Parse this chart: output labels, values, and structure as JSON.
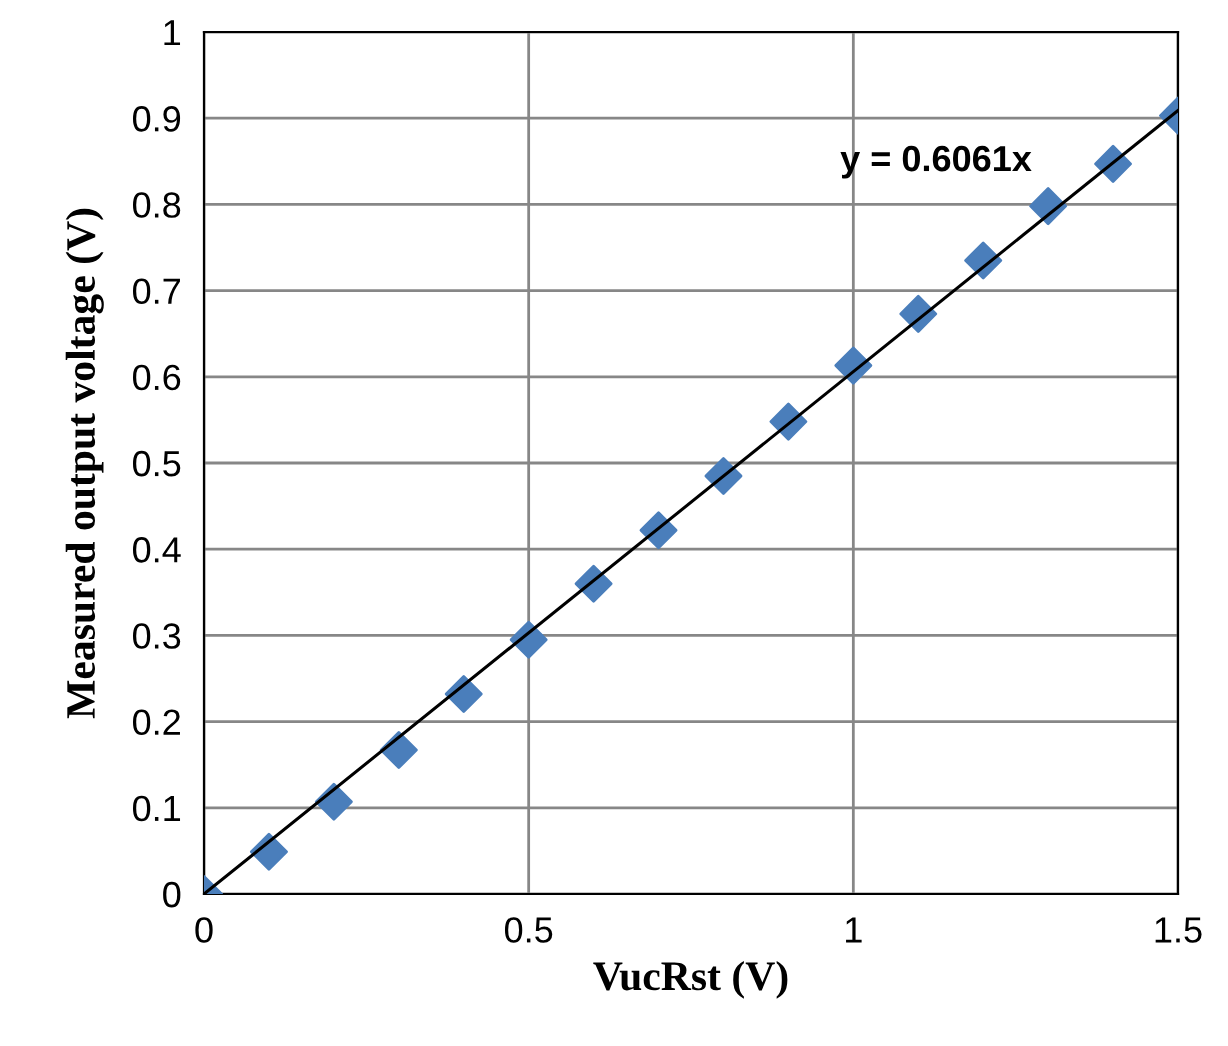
{
  "chart_data": {
    "type": "scatter",
    "xlabel": "VucRst (V)",
    "ylabel": "Measured output voltage (V)",
    "xlim": [
      0,
      1.5
    ],
    "xticks": [
      0,
      0.5,
      1,
      1.5
    ],
    "ylim": [
      0,
      1
    ],
    "yticks": [
      0,
      0.1,
      0.2,
      0.3,
      0.4,
      0.5,
      0.6,
      0.7,
      0.8,
      0.9,
      1
    ],
    "grid": true,
    "annotations": [
      "y = 0.6061x"
    ],
    "series": [
      {
        "marker": "diamond",
        "color": "#4a7ebb",
        "x": [
          0,
          0.1,
          0.2,
          0.3,
          0.4,
          0.5,
          0.6,
          0.7,
          0.8,
          0.9,
          1.0,
          1.1,
          1.2,
          1.3,
          1.4,
          1.5
        ],
        "values": [
          0,
          0.049,
          0.107,
          0.167,
          0.232,
          0.295,
          0.36,
          0.422,
          0.485,
          0.548,
          0.613,
          0.673,
          0.735,
          0.798,
          0.847,
          0.903
        ]
      },
      {
        "type": "line",
        "marker": "none",
        "line_style": "solid",
        "color": "#000000",
        "x": [
          0,
          1.5
        ],
        "values": [
          0,
          0.909
        ]
      }
    ]
  }
}
